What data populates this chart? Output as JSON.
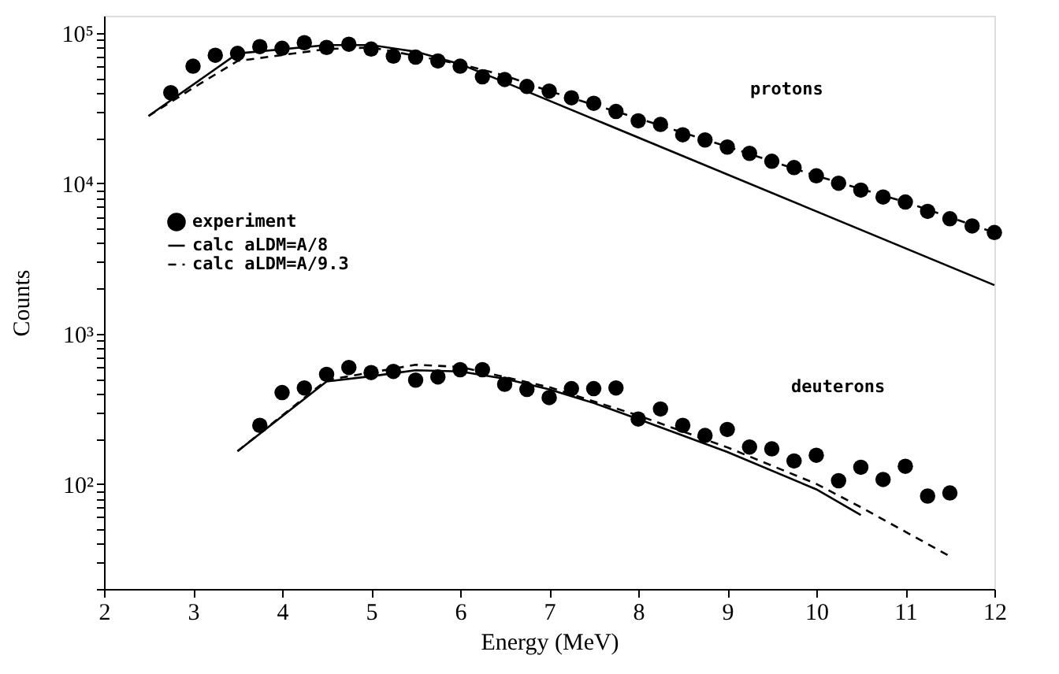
{
  "chart_data": {
    "type": "line",
    "xlabel": "Energy (MeV)",
    "ylabel": "Counts",
    "log": "y",
    "grid": false,
    "legend": "left",
    "xlim": [
      2,
      12
    ],
    "xticks": [
      2,
      3,
      4,
      5,
      6,
      7,
      8,
      9,
      10,
      11,
      12
    ],
    "ylim": [
      20,
      130000
    ],
    "yticks": [
      {
        "value": 20,
        "label": null
      },
      {
        "value": 30,
        "label": null
      },
      {
        "value": 40,
        "label": null
      },
      {
        "value": 50,
        "label": null
      },
      {
        "value": 60,
        "label": null
      },
      {
        "value": 70,
        "label": null
      },
      {
        "value": 80,
        "label": null
      },
      {
        "value": 90,
        "label": null
      },
      {
        "value": 100,
        "label": "10²"
      },
      {
        "value": 200,
        "label": null
      },
      {
        "value": 300,
        "label": null
      },
      {
        "value": 400,
        "label": null
      },
      {
        "value": 500,
        "label": null
      },
      {
        "value": 600,
        "label": null
      },
      {
        "value": 700,
        "label": null
      },
      {
        "value": 800,
        "label": null
      },
      {
        "value": 900,
        "label": null
      },
      {
        "value": 1000,
        "label": "10³"
      },
      {
        "value": 2000,
        "label": null
      },
      {
        "value": 3000,
        "label": null
      },
      {
        "value": 4000,
        "label": null
      },
      {
        "value": 5000,
        "label": null
      },
      {
        "value": 6000,
        "label": null
      },
      {
        "value": 7000,
        "label": null
      },
      {
        "value": 8000,
        "label": null
      },
      {
        "value": 9000,
        "label": null
      },
      {
        "value": 10000,
        "label": "10⁴"
      },
      {
        "value": 20000,
        "label": null
      },
      {
        "value": 30000,
        "label": null
      },
      {
        "value": 40000,
        "label": null
      },
      {
        "value": 50000,
        "label": null
      },
      {
        "value": 60000,
        "label": null
      },
      {
        "value": 70000,
        "label": null
      },
      {
        "value": 80000,
        "label": null
      },
      {
        "value": 90000,
        "label": null
      },
      {
        "value": 100000,
        "label": "10⁵"
      }
    ],
    "annotations": [
      "protons",
      "deuterons"
    ],
    "series": [
      {
        "name": "experiment",
        "type": "scatter",
        "marker": "circle",
        "color": "#000000",
        "x": [
          2.75,
          3.0,
          3.25,
          3.5,
          3.75,
          4.0,
          4.25,
          4.5,
          4.75,
          5.0,
          5.25,
          5.5,
          5.75,
          6.0,
          6.25,
          6.5,
          6.75,
          7.0,
          7.25,
          7.5,
          7.75,
          8.0,
          8.25,
          8.5,
          8.75,
          9.0,
          9.25,
          9.5,
          9.75,
          10.0,
          10.25,
          10.5,
          10.75,
          11.0,
          11.25,
          11.5,
          11.75,
          12.0
        ],
        "values": [
          40000,
          60000,
          71000,
          73000,
          81000,
          79000,
          86000,
          80000,
          84000,
          78000,
          70000,
          69000,
          65000,
          60000,
          51000,
          49000,
          44000,
          41000,
          37000,
          34000,
          30000,
          26000,
          24600,
          21000,
          19400,
          17400,
          15800,
          14000,
          12700,
          11200,
          10000,
          9000,
          8100,
          7500,
          6500,
          5800,
          5200,
          4700
        ]
      },
      {
        "name": "calc aLDM=A/8",
        "line_style": "solid",
        "color": "#000000",
        "x": [
          2.5,
          3.5,
          4.5,
          5.0,
          5.5,
          6.0,
          6.5,
          12.0
        ],
        "values": [
          28000,
          73000,
          83000,
          83000,
          75000,
          62000,
          47000,
          2100
        ]
      },
      {
        "name": "calc aLDM=A/9.3",
        "line_style": "dashed",
        "color": "#000000",
        "x": [
          2.5,
          3.0,
          3.5,
          4.5,
          5.0,
          6.0,
          6.5,
          7.0,
          8.0,
          9.0,
          10.0,
          11.0,
          12.0
        ],
        "values": [
          28000,
          43000,
          65000,
          78000,
          80000,
          62000,
          52000,
          41000,
          27000,
          17500,
          11200,
          7500,
          4700
        ]
      },
      {
        "type": "scatter",
        "marker": "circle",
        "color": "#000000",
        "x": [
          3.75,
          4.0,
          4.25,
          4.5,
          4.75,
          5.0,
          5.25,
          5.5,
          5.75,
          6.0,
          6.25,
          6.5,
          6.75,
          7.0,
          7.25,
          7.5,
          7.75,
          8.0,
          8.25,
          8.5,
          8.75,
          9.0,
          9.25,
          9.5,
          9.75,
          10.0,
          10.25,
          10.5,
          10.75,
          11.0,
          11.25,
          11.5
        ],
        "values": [
          245,
          405,
          435,
          535,
          595,
          550,
          560,
          490,
          515,
          575,
          575,
          460,
          425,
          375,
          430,
          430,
          435,
          270,
          315,
          245,
          210,
          230,
          176,
          171,
          142,
          155,
          105,
          129,
          107,
          131,
          83,
          87
        ]
      },
      {
        "line_style": "solid",
        "color": "#000000",
        "x": [
          3.5,
          4.5,
          5.0,
          5.5,
          6.0,
          6.5,
          7.0,
          7.5,
          8.0,
          9.0,
          10.0,
          10.5
        ],
        "values": [
          165,
          480,
          520,
          570,
          560,
          500,
          425,
          345,
          270,
          163,
          92,
          62
        ]
      },
      {
        "line_style": "dashed",
        "color": "#000000",
        "x": [
          3.5,
          4.5,
          5.5,
          6.0,
          7.0,
          8.0,
          9.0,
          10.0,
          10.5,
          11.5
        ],
        "values": [
          165,
          490,
          620,
          600,
          440,
          285,
          175,
          100,
          70,
          33
        ]
      }
    ]
  }
}
